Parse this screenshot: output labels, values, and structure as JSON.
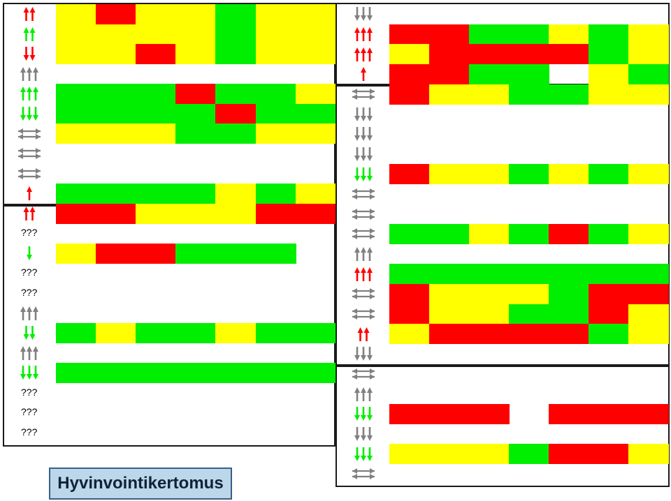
{
  "title": "Hyvinvointikertomus",
  "colors": {
    "red": "#ff0000",
    "yellow": "#ffff00",
    "green": "#00ee00",
    "gray": "#808080",
    "white": "#ffffff"
  },
  "chart_data": {
    "type": "heatmap",
    "legend": {
      "R": "red",
      "Y": "yellow",
      "G": "green",
      "W": "white / no data"
    },
    "panels": [
      {
        "name": "left",
        "groups": [
          {
            "rows": [
              {
                "trend": "up-2-red",
                "cells": [
                  "Y",
                  "R",
                  "Y",
                  "Y",
                  "G",
                  "Y",
                  "Y"
                ]
              },
              {
                "trend": "up-2-green",
                "cells": [
                  "Y",
                  "Y",
                  "Y",
                  "Y",
                  "G",
                  "Y",
                  "Y"
                ]
              },
              {
                "trend": "down-2-red",
                "cells": [
                  "Y",
                  "Y",
                  "R",
                  "Y",
                  "G",
                  "Y",
                  "Y"
                ]
              },
              {
                "trend": "up-3-gray",
                "cells": []
              },
              {
                "trend": "up-3-green",
                "cells": [
                  "G",
                  "G",
                  "G",
                  "R",
                  "G",
                  "G",
                  "Y"
                ]
              },
              {
                "trend": "down-3-green",
                "cells": [
                  "G",
                  "G",
                  "G",
                  "G",
                  "R",
                  "G",
                  "G"
                ]
              },
              {
                "trend": "flat-gray",
                "cells": [
                  "Y",
                  "Y",
                  "Y",
                  "G",
                  "G",
                  "Y",
                  "Y"
                ]
              },
              {
                "trend": "flat-gray",
                "cells": []
              },
              {
                "trend": "flat-gray",
                "cells": []
              },
              {
                "trend": "up-1-red",
                "cells": [
                  "G",
                  "G",
                  "G",
                  "G",
                  "Y",
                  "G",
                  "Y"
                ]
              }
            ]
          },
          {
            "rows": [
              {
                "trend": "up-2-red",
                "cells": [
                  "R",
                  "R",
                  "Y",
                  "Y",
                  "Y",
                  "R",
                  "R"
                ]
              },
              {
                "trend": "???",
                "cells": []
              },
              {
                "trend": "down-1-green",
                "cells": [
                  "Y",
                  "R",
                  "R",
                  "G",
                  "G",
                  "G",
                  "W"
                ]
              },
              {
                "trend": "???",
                "cells": []
              },
              {
                "trend": "???",
                "cells": []
              },
              {
                "trend": "up-3-gray",
                "cells": []
              },
              {
                "trend": "down-2-green",
                "cells": [
                  "G",
                  "Y",
                  "G",
                  "G",
                  "Y",
                  "G",
                  "G"
                ]
              },
              {
                "trend": "up-3-gray",
                "cells": []
              },
              {
                "trend": "down-3-green",
                "cells": [
                  "G",
                  "G",
                  "G",
                  "G",
                  "G",
                  "G",
                  "G"
                ]
              },
              {
                "trend": "???",
                "cells": []
              },
              {
                "trend": "???",
                "cells": []
              },
              {
                "trend": "???",
                "cells": []
              }
            ]
          }
        ]
      },
      {
        "name": "right",
        "groups": [
          {
            "rows": [
              {
                "trend": "down-3-gray",
                "cells": []
              },
              {
                "trend": "up-3-red",
                "cells": [
                  "R",
                  "R",
                  "G",
                  "G",
                  "Y",
                  "G",
                  "Y"
                ]
              },
              {
                "trend": "up-3-red",
                "cells": [
                  "Y",
                  "R",
                  "R",
                  "R",
                  "R",
                  "G",
                  "Y"
                ]
              },
              {
                "trend": "up-1-red",
                "cells": [
                  "R",
                  "R",
                  "G",
                  "G",
                  "W",
                  "Y",
                  "G"
                ]
              }
            ]
          },
          {
            "rows": [
              {
                "trend": "flat-gray",
                "cells": [
                  "R",
                  "Y",
                  "Y",
                  "G",
                  "G",
                  "Y",
                  "Y"
                ]
              },
              {
                "trend": "down-3-gray",
                "cells": []
              },
              {
                "trend": "down-3-gray",
                "cells": []
              },
              {
                "trend": "down-3-gray",
                "cells": []
              },
              {
                "trend": "down-3-green",
                "cells": [
                  "R",
                  "Y",
                  "Y",
                  "G",
                  "Y",
                  "G",
                  "Y"
                ]
              },
              {
                "trend": "flat-gray",
                "cells": []
              },
              {
                "trend": "flat-gray",
                "cells": []
              },
              {
                "trend": "flat-gray",
                "cells": [
                  "G",
                  "G",
                  "Y",
                  "G",
                  "R",
                  "G",
                  "Y"
                ]
              },
              {
                "trend": "up-3-gray",
                "cells": []
              },
              {
                "trend": "up-3-red",
                "cells": [
                  "G",
                  "G",
                  "G",
                  "G",
                  "G",
                  "G",
                  "G"
                ]
              },
              {
                "trend": "flat-gray",
                "cells": [
                  "R",
                  "Y",
                  "Y",
                  "Y",
                  "G",
                  "R",
                  "R"
                ]
              },
              {
                "trend": "flat-gray",
                "cells": [
                  "R",
                  "Y",
                  "Y",
                  "G",
                  "G",
                  "R",
                  "Y"
                ]
              },
              {
                "trend": "up-2-red",
                "cells": [
                  "Y",
                  "R",
                  "R",
                  "R",
                  "R",
                  "G",
                  "Y"
                ]
              },
              {
                "trend": "down-3-gray",
                "cells": []
              }
            ]
          },
          {
            "rows": [
              {
                "trend": "flat-gray",
                "cells": []
              },
              {
                "trend": "up-3-gray",
                "cells": []
              },
              {
                "trend": "down-3-green",
                "cells": [
                  "R",
                  "R",
                  "R",
                  "W",
                  "R",
                  "R",
                  "R"
                ]
              },
              {
                "trend": "down-3-gray",
                "cells": []
              },
              {
                "trend": "down-3-green",
                "cells": [
                  "Y",
                  "Y",
                  "Y",
                  "G",
                  "R",
                  "R",
                  "Y"
                ]
              },
              {
                "trend": "flat-gray",
                "cells": []
              }
            ]
          }
        ]
      }
    ]
  }
}
